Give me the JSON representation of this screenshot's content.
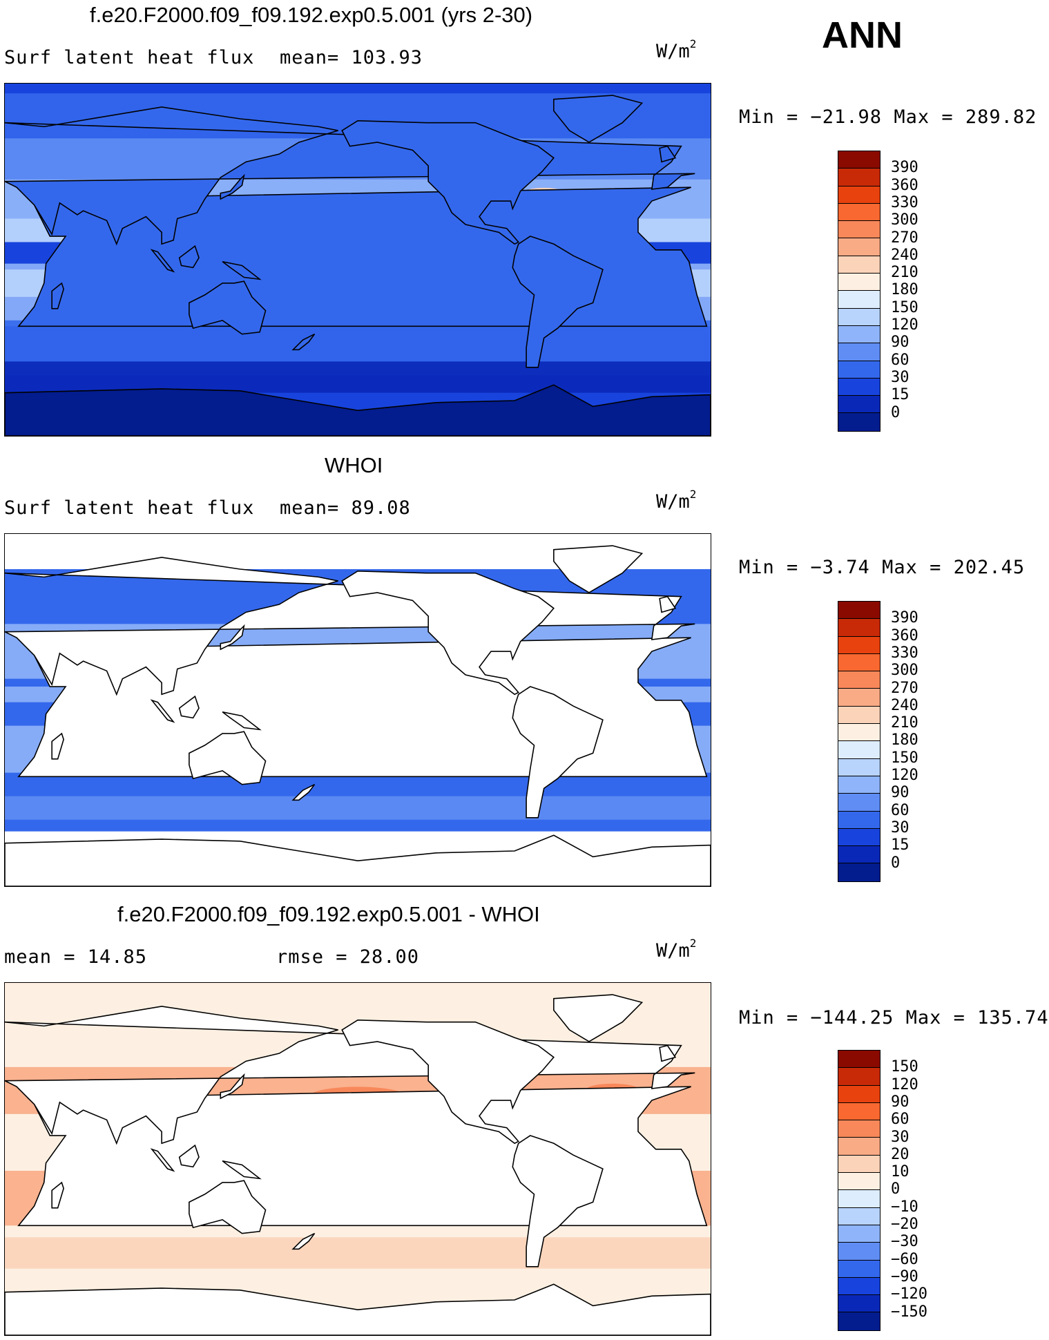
{
  "season": "ANN",
  "panels": [
    {
      "title": "f.e20.F2000.f09_f09.192.exp0.5.001 (yrs 2-30)",
      "left_label": "Surf latent heat flux",
      "mid_label": "mean= 103.93",
      "units": "W/m",
      "units_sup": "2",
      "minmax": "Min = −21.98 Max = 289.82",
      "kind": "model"
    },
    {
      "title": "WHOI",
      "left_label": "Surf latent heat flux",
      "mid_label": "mean=  89.08",
      "units": "W/m",
      "units_sup": "2",
      "minmax": "Min =  −3.74 Max = 202.45",
      "kind": "obs"
    },
    {
      "title": "f.e20.F2000.f09_f09.192.exp0.5.001 - WHOI",
      "left_label": "mean =   14.85",
      "mid_label": "rmse =   28.00",
      "units": "W/m",
      "units_sup": "2",
      "minmax": "Min = −144.25 Max = 135.74",
      "kind": "diff"
    }
  ],
  "colorbars": {
    "flux": {
      "labels": [
        "390",
        "360",
        "330",
        "300",
        "270",
        "240",
        "210",
        "180",
        "150",
        "120",
        "90",
        "60",
        "30",
        "15",
        "0"
      ],
      "colors": [
        "#8a0a00",
        "#c82a08",
        "#e8420f",
        "#f86830",
        "#f8885a",
        "#f9ab86",
        "#fbd3b9",
        "#fdf0e2",
        "#deedfd",
        "#b8d3fc",
        "#8fb4f9",
        "#5f8df4",
        "#3468ec",
        "#1844dd",
        "#0a28b8",
        "#031c8e"
      ]
    },
    "diff": {
      "labels": [
        "150",
        "120",
        "90",
        "60",
        "30",
        "20",
        "10",
        "0",
        "−10",
        "−20",
        "−30",
        "−60",
        "−90",
        "−120",
        "−150"
      ],
      "colors": [
        "#8a0a00",
        "#c82a08",
        "#e8420f",
        "#f86830",
        "#f8885a",
        "#f9ab86",
        "#fbd3b9",
        "#fdf0e2",
        "#deedfd",
        "#b8d3fc",
        "#8fb4f9",
        "#5f8df4",
        "#3468ec",
        "#1844dd",
        "#0a28b8",
        "#031c8e"
      ]
    }
  }
}
